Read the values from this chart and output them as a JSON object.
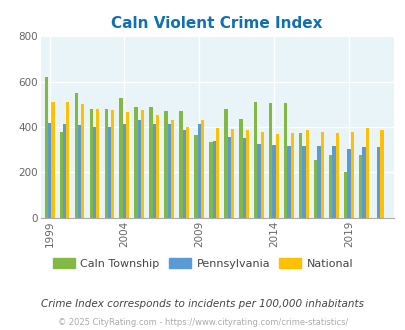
{
  "title": "Caln Violent Crime Index",
  "subtitle": "Crime Index corresponds to incidents per 100,000 inhabitants",
  "footer": "© 2025 CityRating.com - https://www.cityrating.com/crime-statistics/",
  "years": [
    1999,
    2000,
    2001,
    2002,
    2003,
    2004,
    2005,
    2006,
    2007,
    2008,
    2009,
    2010,
    2011,
    2012,
    2013,
    2014,
    2015,
    2016,
    2017,
    2018,
    2019,
    2020,
    2021
  ],
  "caln": [
    620,
    380,
    550,
    480,
    480,
    530,
    490,
    490,
    470,
    470,
    365,
    335,
    480,
    435,
    510,
    505,
    505,
    375,
    255,
    275,
    200,
    275,
    0
  ],
  "pennsylvania": [
    420,
    415,
    410,
    400,
    400,
    415,
    430,
    415,
    415,
    385,
    415,
    340,
    355,
    350,
    325,
    320,
    315,
    315,
    315,
    315,
    305,
    310,
    310
  ],
  "national": [
    510,
    510,
    500,
    480,
    475,
    465,
    475,
    455,
    430,
    400,
    430,
    395,
    390,
    385,
    380,
    370,
    375,
    385,
    380,
    375,
    380,
    395,
    385
  ],
  "caln_color": "#82b944",
  "pa_color": "#5b9bd5",
  "national_color": "#ffc000",
  "bg_color": "#e8f4f8",
  "title_color": "#1070b0",
  "subtitle_color": "#444444",
  "footer_color": "#aaaaaa",
  "ylim": [
    0,
    800
  ],
  "yticks": [
    0,
    200,
    400,
    600,
    800
  ],
  "xtick_years": [
    1999,
    2004,
    2009,
    2014,
    2019
  ],
  "bar_width": 0.22,
  "xlim_left": 1998.4,
  "xlim_right": 2022.0,
  "legend_labels": [
    "Caln Township",
    "Pennsylvania",
    "National"
  ]
}
